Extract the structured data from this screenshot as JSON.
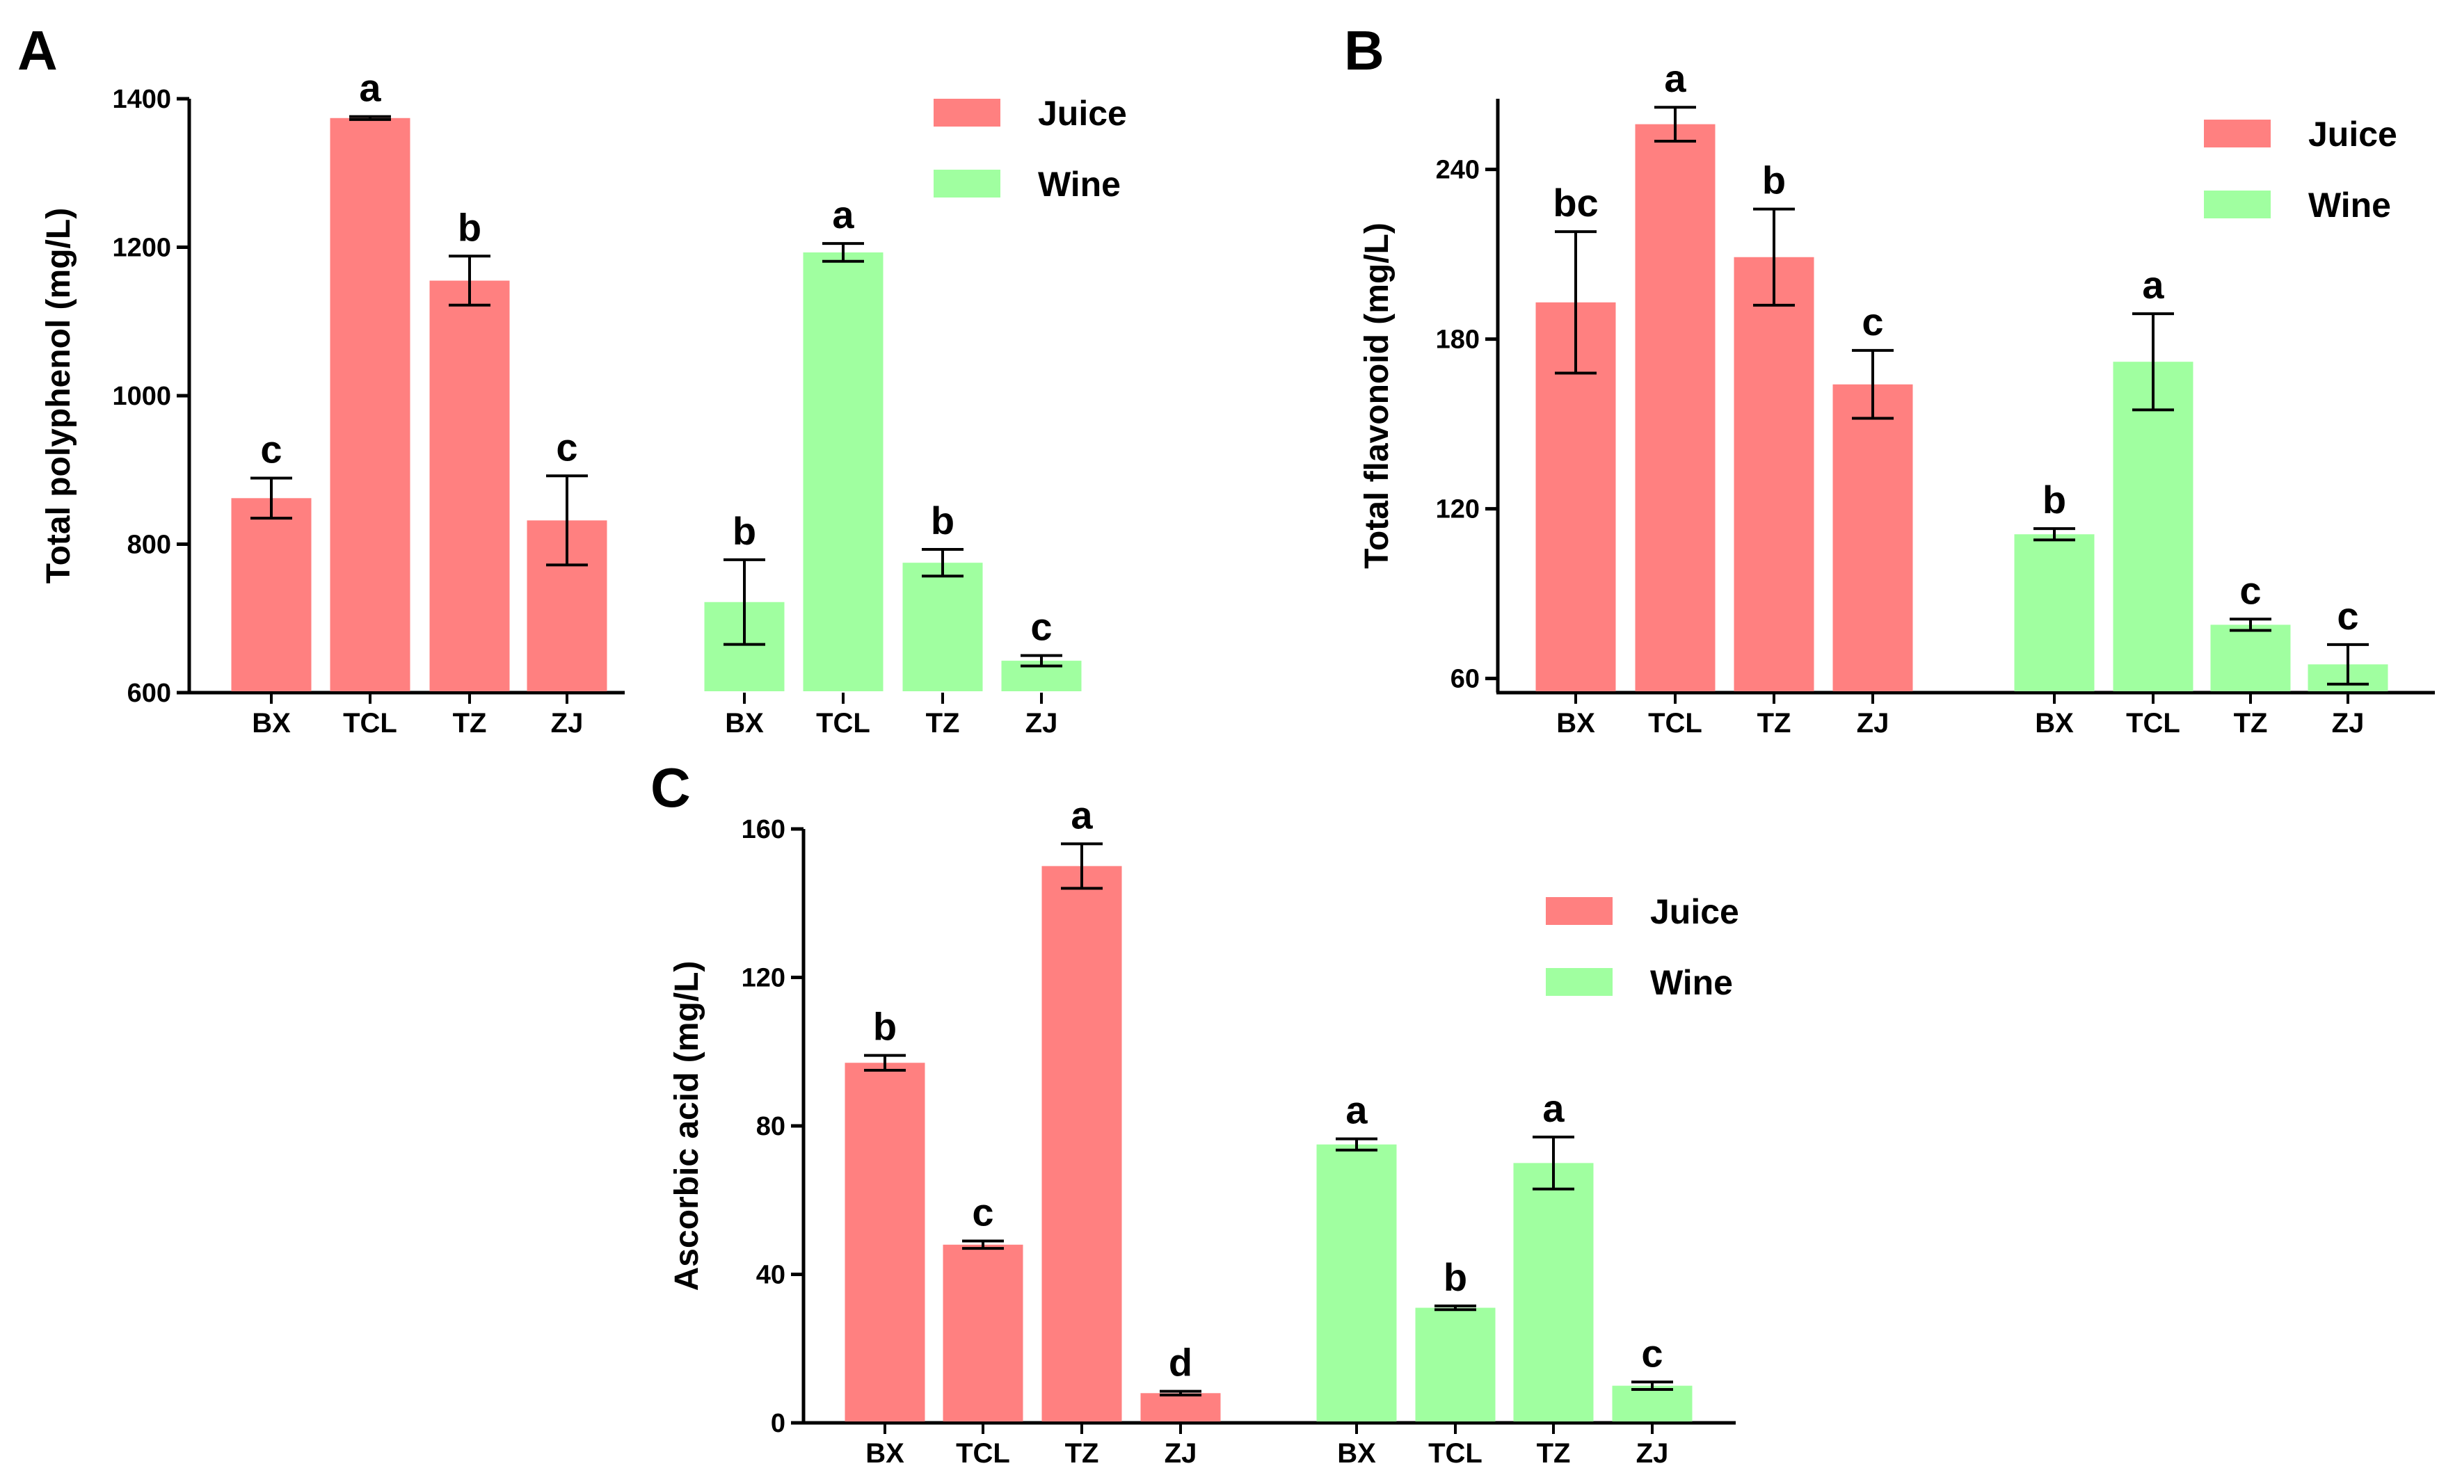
{
  "chart_data": [
    {
      "panel": "A",
      "type": "bar",
      "ylabel": "Total polyphenol (mg/L)",
      "ylim": [
        600,
        1400
      ],
      "yticks": [
        600,
        800,
        1000,
        1200,
        1400
      ],
      "legend": {
        "position": "top-right"
      },
      "series": [
        {
          "name": "Juice",
          "color": "#ff8080",
          "categories": [
            "BX",
            "TCL",
            "TZ",
            "ZJ"
          ],
          "values": [
            862,
            1374,
            1155,
            832
          ],
          "errors": [
            27,
            2,
            33,
            60
          ],
          "sig": [
            "c",
            "a",
            "b",
            "c"
          ]
        },
        {
          "name": "Wine",
          "color": "#a0ffa0",
          "categories": [
            "BX",
            "TCL",
            "TZ",
            "ZJ"
          ],
          "values": [
            722,
            1193,
            775,
            643
          ],
          "errors": [
            57,
            12,
            18,
            7
          ],
          "sig": [
            "b",
            "a",
            "b",
            "c"
          ]
        }
      ]
    },
    {
      "panel": "B",
      "type": "bar",
      "ylabel": "Total flavonoid (mg/L)",
      "ylim": [
        55,
        265
      ],
      "yticks": [
        60,
        120,
        180,
        240
      ],
      "legend": {
        "position": "top-right"
      },
      "series": [
        {
          "name": "Juice",
          "color": "#ff8080",
          "categories": [
            "BX",
            "TCL",
            "TZ",
            "ZJ"
          ],
          "values": [
            193,
            256,
            209,
            164
          ],
          "errors": [
            25,
            6,
            17,
            12
          ],
          "sig": [
            "bc",
            "a",
            "b",
            "c"
          ]
        },
        {
          "name": "Wine",
          "color": "#a0ffa0",
          "categories": [
            "BX",
            "TCL",
            "TZ",
            "ZJ"
          ],
          "values": [
            111,
            172,
            79,
            65
          ],
          "errors": [
            2,
            17,
            2,
            7
          ],
          "sig": [
            "b",
            "a",
            "c",
            "c"
          ]
        }
      ]
    },
    {
      "panel": "C",
      "type": "bar",
      "ylabel": "Ascorbic acid (mg/L)",
      "ylim": [
        0,
        160
      ],
      "yticks": [
        0,
        40,
        80,
        120,
        160
      ],
      "legend": {
        "position": "top-right"
      },
      "series": [
        {
          "name": "Juice",
          "color": "#ff8080",
          "categories": [
            "BX",
            "TCL",
            "TZ",
            "ZJ"
          ],
          "values": [
            97,
            48,
            150,
            8
          ],
          "errors": [
            2,
            1,
            6,
            0.5
          ],
          "sig": [
            "b",
            "c",
            "a",
            "d"
          ]
        },
        {
          "name": "Wine",
          "color": "#a0ffa0",
          "categories": [
            "BX",
            "TCL",
            "TZ",
            "ZJ"
          ],
          "values": [
            75,
            31,
            70,
            10
          ],
          "errors": [
            1.5,
            0.5,
            7,
            1
          ],
          "sig": [
            "a",
            "b",
            "a",
            "c"
          ]
        }
      ]
    }
  ]
}
